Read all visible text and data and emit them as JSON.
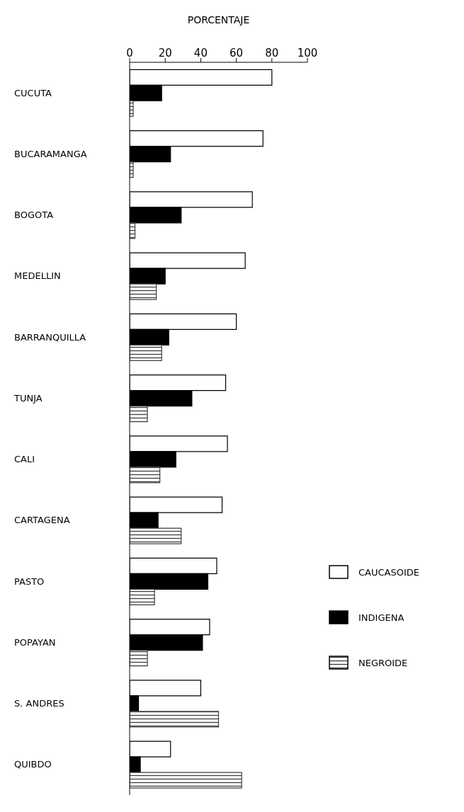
{
  "chart_data": {
    "type": "bar",
    "orientation": "horizontal",
    "xlabel": "PORCENTAJE",
    "categories": [
      "CUCUTA",
      "BUCARAMANGA",
      "BOGOTA",
      "MEDELLIN",
      "BARRANQUILLA",
      "TUNJA",
      "CALI",
      "CARTAGENA",
      "PASTO",
      "POPAYAN",
      "S. ANDRES",
      "QUIBDO"
    ],
    "series": [
      {
        "name": "CAUCASOIDE",
        "color": "#ffffff",
        "values": [
          80,
          75,
          69,
          65,
          60,
          54,
          55,
          52,
          49,
          45,
          40,
          23
        ]
      },
      {
        "name": "INDIGENA",
        "color": "#000000",
        "values": [
          18,
          23,
          29,
          20,
          22,
          35,
          26,
          16,
          44,
          41,
          5,
          6
        ]
      },
      {
        "name": "NEGROIDE",
        "color": "#404040",
        "values": [
          2,
          2,
          3,
          15,
          18,
          10,
          17,
          29,
          14,
          10,
          50,
          63
        ]
      }
    ],
    "xlim": [
      0,
      100
    ],
    "xticks": [
      0,
      20,
      40,
      60,
      80,
      100
    ],
    "grid": false,
    "legend": "right"
  }
}
